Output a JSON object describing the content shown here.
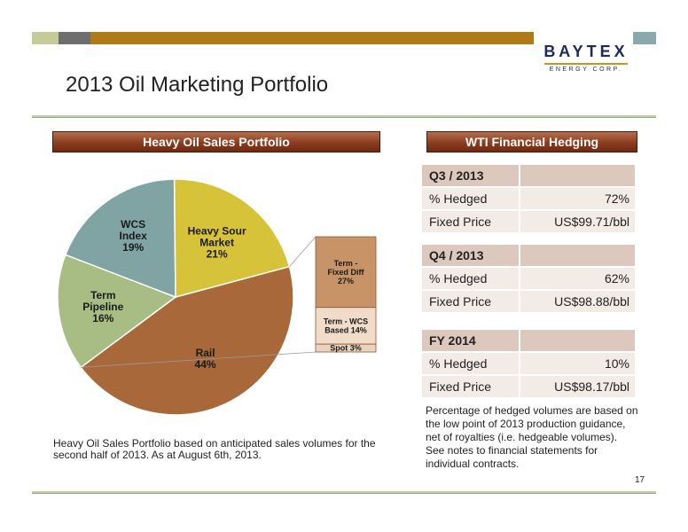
{
  "logo": {
    "main": "BAYTEX",
    "sub": "ENERGY CORP."
  },
  "page_title": "2013 Oil Marketing Portfolio",
  "left_panel": {
    "header": "Heavy Oil Sales Portfolio",
    "note": "Heavy Oil Sales Portfolio based on anticipated sales volumes for the second half of 2013. As at August 6th, 2013."
  },
  "right_panel": {
    "header": "WTI Financial Hedging",
    "groups": [
      {
        "period": "Q3 / 2013",
        "rows": [
          {
            "label": "% Hedged",
            "value": "72%"
          },
          {
            "label": "Fixed Price",
            "value": "US$99.71/bbl"
          }
        ]
      },
      {
        "period": "Q4 / 2013",
        "rows": [
          {
            "label": "% Hedged",
            "value": "62%"
          },
          {
            "label": "Fixed Price",
            "value": "US$98.88/bbl"
          }
        ]
      },
      {
        "period": "FY 2014",
        "rows": [
          {
            "label": "% Hedged",
            "value": "10%"
          },
          {
            "label": "Fixed Price",
            "value": "US$98.17/bbl"
          }
        ]
      }
    ],
    "note": "Percentage of hedged volumes are based on the low point of 2013 production guidance, net of royalties (i.e. hedgeable volumes). See notes to financial statements for individual contracts."
  },
  "page_number": "17",
  "colors": {
    "rail": "#a8683a",
    "term_pipeline": "#a7bd83",
    "wcs_index": "#7fa4a3",
    "heavy_sour": "#d6c33a",
    "bar_fixed_diff": "#c89467",
    "bar_wcs_based": "#f0dcc8",
    "bar_spot": "#ead3bf"
  },
  "chart_data": [
    {
      "type": "pie",
      "slices": [
        {
          "name": "Rail",
          "label": "Rail",
          "value": 44,
          "value_label": "44%"
        },
        {
          "name": "Term Pipeline",
          "label": "Term Pipeline",
          "value": 16,
          "value_label": "16%"
        },
        {
          "name": "WCS Index",
          "label": "WCS Index",
          "value": 19,
          "value_label": "19%"
        },
        {
          "name": "Heavy Sour Market",
          "label": "Heavy Sour Market",
          "value": 21,
          "value_label": "21%"
        }
      ]
    },
    {
      "type": "bar",
      "stacked": true,
      "breakdown_of": "Rail",
      "segments": [
        {
          "name": "Term - Fixed Diff",
          "value": 27,
          "value_label": "27%"
        },
        {
          "name": "Term - WCS Based",
          "value": 14,
          "value_label": "14%"
        },
        {
          "name": "Spot",
          "value": 3,
          "value_label": "3%"
        }
      ]
    }
  ]
}
